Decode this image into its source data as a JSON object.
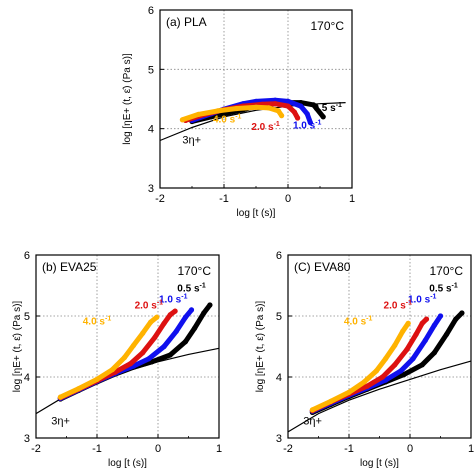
{
  "chart_data": [
    {
      "type": "line",
      "panel_label": "(a) PLA",
      "temperature": "170°C",
      "xlabel": "log [t (s)]",
      "ylabel": "log [ηE+ (t, ε̇) (Pa s)]",
      "xlim": [
        -2,
        1
      ],
      "ylim": [
        3,
        6
      ],
      "xticks": [
        "-2",
        "-1",
        "0",
        "1"
      ],
      "yticks": [
        "3",
        "4",
        "5",
        "6"
      ],
      "grid": "dotted at x=-1, x=0 and y=4, y=5",
      "reference_label": "3η+",
      "reference_curve": {
        "x": [
          -2,
          -1.5,
          -1,
          -0.5,
          0,
          0.5,
          0.9
        ],
        "y": [
          3.8,
          4.02,
          4.2,
          4.31,
          4.38,
          4.42,
          4.44
        ]
      },
      "series": [
        {
          "name": "0.5 s-1",
          "color": "#000000",
          "x": [
            -1.5,
            -1.2,
            -1,
            -0.7,
            -0.5,
            -0.2,
            0,
            0.2,
            0.4,
            0.55
          ],
          "y": [
            4.12,
            4.2,
            4.25,
            4.32,
            4.38,
            4.42,
            4.44,
            4.44,
            4.4,
            4.2
          ]
        },
        {
          "name": "1.0 s-1",
          "color": "#1010ee",
          "x": [
            -1.5,
            -1.2,
            -1,
            -0.7,
            -0.5,
            -0.2,
            0,
            0.2,
            0.3,
            0.35
          ],
          "y": [
            4.14,
            4.25,
            4.33,
            4.42,
            4.46,
            4.48,
            4.46,
            4.38,
            4.25,
            4.1
          ]
        },
        {
          "name": "2.0 s-1",
          "color": "#dd1111",
          "x": [
            -1.6,
            -1.3,
            -1,
            -0.7,
            -0.4,
            -0.2,
            0,
            0.1,
            0.15
          ],
          "y": [
            4.14,
            4.24,
            4.32,
            4.38,
            4.41,
            4.42,
            4.38,
            4.28,
            4.18
          ]
        },
        {
          "name": "4.0 s-1",
          "color": "#ffb300",
          "x": [
            -1.65,
            -1.4,
            -1.1,
            -0.8,
            -0.5,
            -0.3,
            -0.15,
            -0.1
          ],
          "y": [
            4.15,
            4.24,
            4.3,
            4.34,
            4.36,
            4.35,
            4.3,
            4.22
          ]
        }
      ]
    },
    {
      "type": "line",
      "panel_label": "(b) EVA25",
      "temperature": "170°C",
      "xlabel": "log [t (s)]",
      "ylabel": "log [ηE+ (t, ε̇) (Pa s)]",
      "xlim": [
        -2,
        1
      ],
      "ylim": [
        3,
        6
      ],
      "xticks": [
        "-2",
        "-1",
        "0",
        "1"
      ],
      "yticks": [
        "3",
        "4",
        "5",
        "6"
      ],
      "grid": "dotted at x=-1, x=0 and y=4, y=5",
      "reference_label": "3η+",
      "reference_curve": {
        "x": [
          -2,
          -1.5,
          -1,
          -0.5,
          0,
          0.5,
          1
        ],
        "y": [
          3.4,
          3.7,
          3.93,
          4.1,
          4.25,
          4.37,
          4.47
        ]
      },
      "series": [
        {
          "name": "0.5 s-1",
          "color": "#000000",
          "x": [
            -1.6,
            -1.3,
            -1,
            -0.7,
            -0.4,
            -0.1,
            0.2,
            0.45,
            0.6,
            0.75,
            0.85
          ],
          "y": [
            3.64,
            3.78,
            3.92,
            4.05,
            4.16,
            4.25,
            4.36,
            4.58,
            4.8,
            5.05,
            5.18
          ]
        },
        {
          "name": "1.0 s-1",
          "color": "#1010ee",
          "x": [
            -1.6,
            -1.3,
            -1,
            -0.7,
            -0.4,
            -0.15,
            0.1,
            0.3,
            0.45,
            0.55
          ],
          "y": [
            3.65,
            3.79,
            3.93,
            4.06,
            4.18,
            4.3,
            4.5,
            4.75,
            4.98,
            5.1
          ]
        },
        {
          "name": "2.0 s-1",
          "color": "#dd1111",
          "x": [
            -1.6,
            -1.3,
            -1,
            -0.7,
            -0.45,
            -0.25,
            -0.05,
            0.1,
            0.2,
            0.28
          ],
          "y": [
            3.66,
            3.8,
            3.94,
            4.08,
            4.22,
            4.4,
            4.65,
            4.88,
            5.02,
            5.08
          ]
        },
        {
          "name": "4.0 s-1",
          "color": "#ffb300",
          "x": [
            -1.6,
            -1.3,
            -1,
            -0.75,
            -0.55,
            -0.4,
            -0.25,
            -0.12,
            -0.02
          ],
          "y": [
            3.67,
            3.81,
            3.96,
            4.12,
            4.32,
            4.52,
            4.72,
            4.9,
            4.98
          ]
        }
      ]
    },
    {
      "type": "line",
      "panel_label": "(C) EVA80",
      "temperature": "170°C",
      "xlabel": "log [t (s)]",
      "ylabel": "log [ηE+ (t, ε̇) (Pa s)]",
      "xlim": [
        -2,
        1
      ],
      "ylim": [
        3,
        6
      ],
      "xticks": [
        "-2",
        "-1",
        "0",
        "1"
      ],
      "yticks": [
        "3",
        "4",
        "5",
        "6"
      ],
      "grid": "dotted at x=-1, x=0 and y=4, y=5",
      "reference_label": "3η+",
      "reference_curve": {
        "x": [
          -2,
          -1.5,
          -1,
          -0.5,
          0,
          0.5,
          1
        ],
        "y": [
          3.1,
          3.4,
          3.62,
          3.8,
          3.96,
          4.12,
          4.26
        ]
      },
      "series": [
        {
          "name": "0.5 s-1",
          "color": "#000000",
          "x": [
            -1.6,
            -1.3,
            -1,
            -0.7,
            -0.4,
            -0.1,
            0.2,
            0.4,
            0.6,
            0.75,
            0.85
          ],
          "y": [
            3.42,
            3.55,
            3.68,
            3.8,
            3.92,
            4.04,
            4.2,
            4.4,
            4.7,
            4.95,
            5.05
          ]
        },
        {
          "name": "1.0 s-1",
          "color": "#1010ee",
          "x": [
            -1.6,
            -1.3,
            -1,
            -0.7,
            -0.4,
            -0.15,
            0.05,
            0.25,
            0.4,
            0.5
          ],
          "y": [
            3.44,
            3.57,
            3.7,
            3.82,
            3.95,
            4.1,
            4.3,
            4.6,
            4.85,
            5.0
          ]
        },
        {
          "name": "2.0 s-1",
          "color": "#dd1111",
          "x": [
            -1.6,
            -1.3,
            -1,
            -0.7,
            -0.45,
            -0.25,
            -0.05,
            0.1,
            0.2,
            0.27
          ],
          "y": [
            3.45,
            3.59,
            3.72,
            3.85,
            4.0,
            4.2,
            4.45,
            4.7,
            4.88,
            4.95
          ]
        },
        {
          "name": "4.0 s-1",
          "color": "#ffb300",
          "x": [
            -1.6,
            -1.3,
            -1,
            -0.75,
            -0.55,
            -0.4,
            -0.25,
            -0.12,
            -0.03
          ],
          "y": [
            3.46,
            3.6,
            3.75,
            3.92,
            4.1,
            4.3,
            4.52,
            4.75,
            4.88
          ]
        }
      ]
    }
  ]
}
